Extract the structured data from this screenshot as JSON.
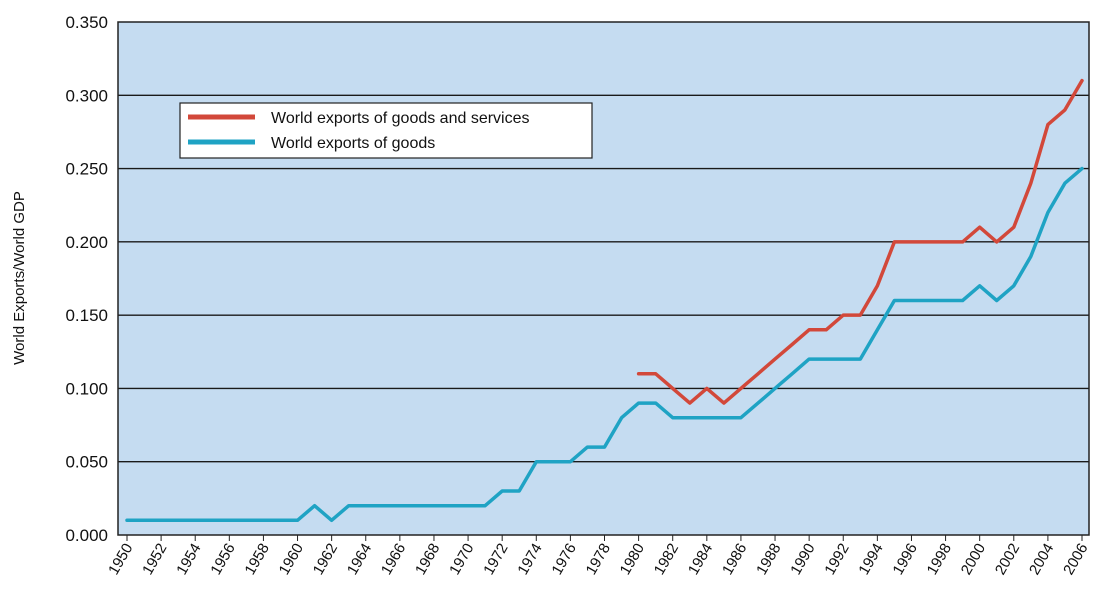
{
  "chart_data": {
    "type": "line",
    "title": "",
    "xlabel": "",
    "ylabel": "World Exports/World GDP",
    "xlim": [
      1950,
      2006
    ],
    "ylim": [
      0,
      0.35
    ],
    "y_ticks": [
      "0.000",
      "0.050",
      "0.100",
      "0.150",
      "0.200",
      "0.250",
      "0.300",
      "0.350"
    ],
    "x_ticks": [
      "1950",
      "1952",
      "1954",
      "1956",
      "1958",
      "1960",
      "1962",
      "1964",
      "1966",
      "1968",
      "1970",
      "1972",
      "1974",
      "1976",
      "1978",
      "1980",
      "1982",
      "1984",
      "1986",
      "1988",
      "1990",
      "1992",
      "1994",
      "1996",
      "1998",
      "2000",
      "2002",
      "2004",
      "2006"
    ],
    "grid": "horizontal",
    "legend_position": "top-left",
    "background": "#c5dcf1",
    "series": [
      {
        "name": "World exports of goods and services",
        "color": "#d2483a",
        "x": [
          1980,
          1981,
          1982,
          1983,
          1984,
          1985,
          1986,
          1987,
          1988,
          1989,
          1990,
          1991,
          1992,
          1993,
          1994,
          1995,
          1996,
          1997,
          1998,
          1999,
          2000,
          2001,
          2002,
          2003,
          2004,
          2005,
          2006
        ],
        "y": [
          0.11,
          0.11,
          0.1,
          0.09,
          0.1,
          0.09,
          0.1,
          0.11,
          0.12,
          0.13,
          0.14,
          0.14,
          0.15,
          0.15,
          0.17,
          0.2,
          0.2,
          0.2,
          0.2,
          0.2,
          0.21,
          0.2,
          0.21,
          0.24,
          0.28,
          0.29,
          0.31
        ]
      },
      {
        "name": "World exports of goods",
        "color": "#1fa3c4",
        "x": [
          1950,
          1951,
          1952,
          1953,
          1954,
          1955,
          1956,
          1957,
          1958,
          1959,
          1960,
          1961,
          1962,
          1963,
          1964,
          1965,
          1966,
          1967,
          1968,
          1969,
          1970,
          1971,
          1972,
          1973,
          1974,
          1975,
          1976,
          1977,
          1978,
          1979,
          1980,
          1981,
          1982,
          1983,
          1984,
          1985,
          1986,
          1987,
          1988,
          1989,
          1990,
          1991,
          1992,
          1993,
          1994,
          1995,
          1996,
          1997,
          1998,
          1999,
          2000,
          2001,
          2002,
          2003,
          2004,
          2005,
          2006
        ],
        "y": [
          0.01,
          0.01,
          0.01,
          0.01,
          0.01,
          0.01,
          0.01,
          0.01,
          0.01,
          0.01,
          0.01,
          0.02,
          0.01,
          0.02,
          0.02,
          0.02,
          0.02,
          0.02,
          0.02,
          0.02,
          0.02,
          0.02,
          0.03,
          0.03,
          0.05,
          0.05,
          0.05,
          0.06,
          0.06,
          0.08,
          0.09,
          0.09,
          0.08,
          0.08,
          0.08,
          0.08,
          0.08,
          0.09,
          0.1,
          0.11,
          0.12,
          0.12,
          0.12,
          0.12,
          0.14,
          0.16,
          0.16,
          0.16,
          0.16,
          0.16,
          0.17,
          0.16,
          0.17,
          0.19,
          0.22,
          0.24,
          0.25
        ]
      }
    ]
  }
}
